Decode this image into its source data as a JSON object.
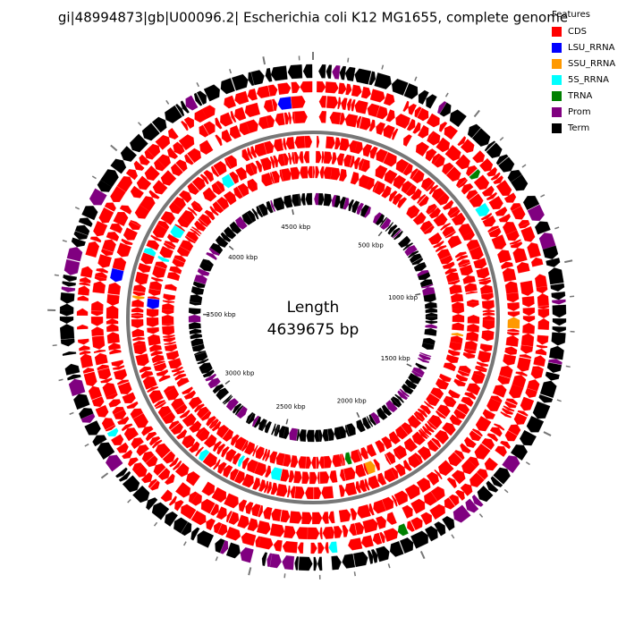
{
  "title": "gi|48994873|gb|U00096.2| Escherichia coli K12 MG1655, complete genome",
  "center": {
    "label": "Length",
    "value": "4639675 bp"
  },
  "scale_labels": [
    "500 kbp",
    "1000 kbp",
    "1500 kbp",
    "2000 kbp",
    "2500 kbp",
    "3000 kbp",
    "3500 kbp",
    "4000 kbp",
    "4500 kbp"
  ],
  "legend": {
    "title": "Features",
    "items": [
      {
        "label": "CDS",
        "color": "#ff0000"
      },
      {
        "label": "LSU_RRNA",
        "color": "#0000ff"
      },
      {
        "label": "SSU_RRNA",
        "color": "#ff9900"
      },
      {
        "label": "5S_RRNA",
        "color": "#00ffff"
      },
      {
        "label": "TRNA",
        "color": "#008000"
      },
      {
        "label": "Prom",
        "color": "#800080"
      },
      {
        "label": "Term",
        "color": "#000000"
      }
    ]
  }
}
